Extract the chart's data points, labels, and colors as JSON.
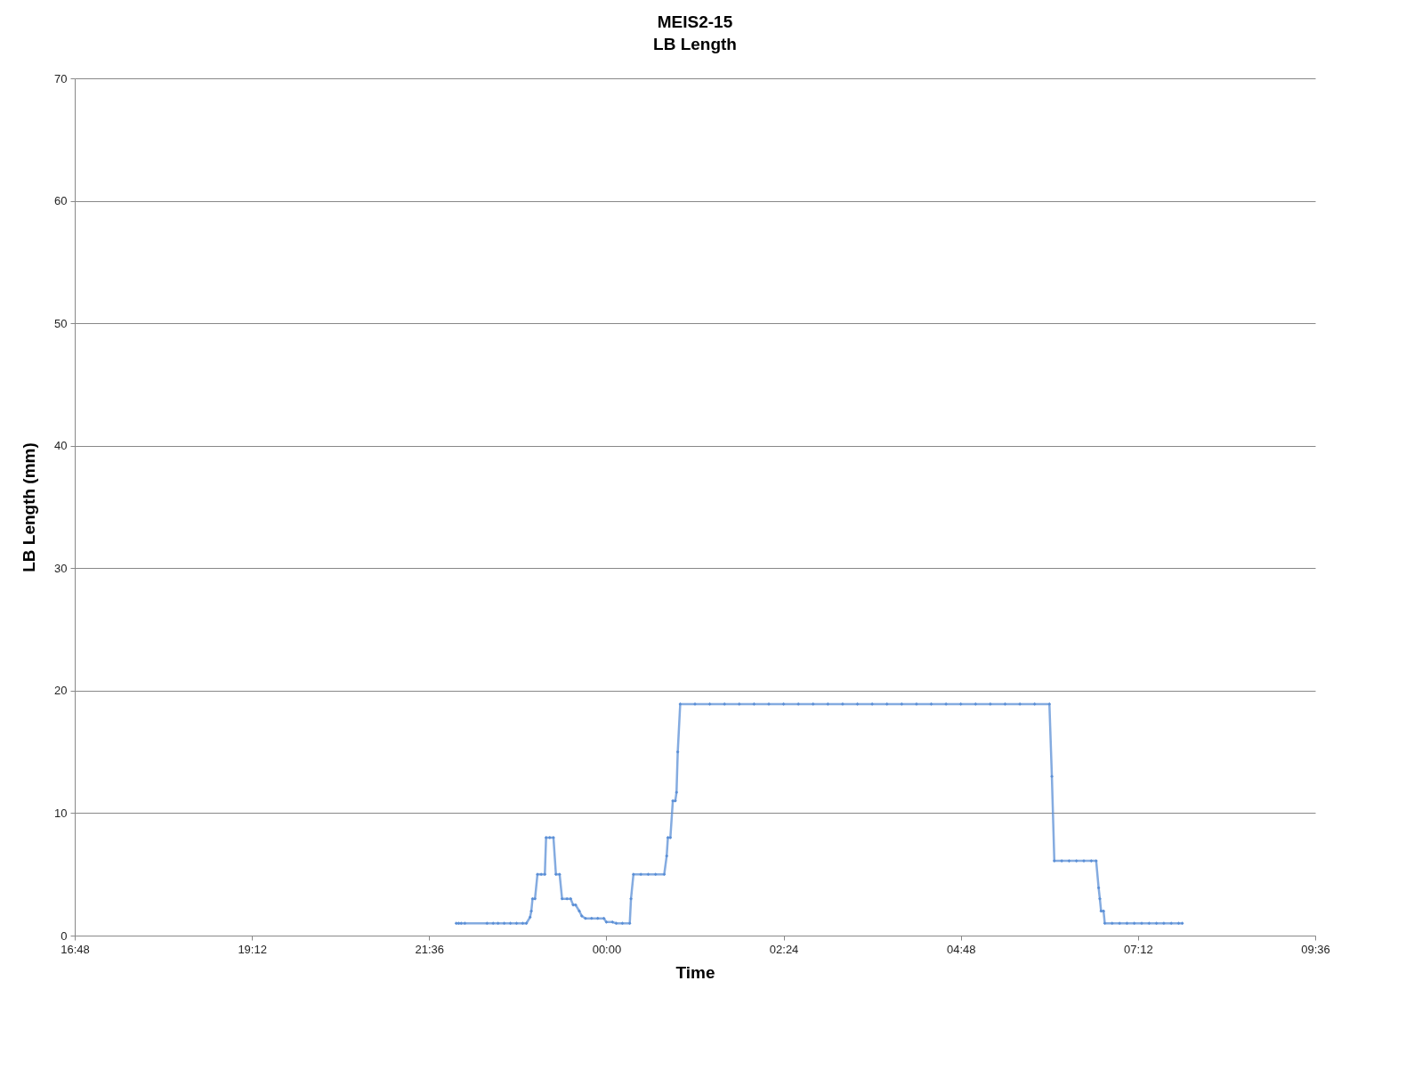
{
  "chart_data": {
    "type": "line",
    "title": "MEIS2-15",
    "subtitle": "LB Length",
    "xlabel": "Time",
    "ylabel": "LB Length (mm)",
    "xlim": [
      "2000-01-01T16:48",
      "2000-01-02T09:36"
    ],
    "xticks": [
      {
        "value": "2000-01-01T16:48",
        "label": "16:48"
      },
      {
        "value": "2000-01-01T19:12",
        "label": "19:12"
      },
      {
        "value": "2000-01-01T21:36",
        "label": "21:36"
      },
      {
        "value": "2000-01-02T00:00",
        "label": "00:00"
      },
      {
        "value": "2000-01-02T02:24",
        "label": "02:24"
      },
      {
        "value": "2000-01-02T04:48",
        "label": "04:48"
      },
      {
        "value": "2000-01-02T07:12",
        "label": "07:12"
      },
      {
        "value": "2000-01-02T09:36",
        "label": "09:36"
      }
    ],
    "ylim": [
      0,
      70
    ],
    "yticks": [
      0,
      10,
      20,
      30,
      40,
      50,
      60,
      70
    ],
    "grid": "y",
    "marker": "diamond",
    "line_style": "solid",
    "series": [
      {
        "color": "#5b8fd6",
        "x": [
          "2000-01-01T21:58",
          "2000-01-01T22:00",
          "2000-01-01T22:02",
          "2000-01-01T22:05",
          "2000-01-01T22:23",
          "2000-01-01T22:28",
          "2000-01-01T22:32",
          "2000-01-01T22:37",
          "2000-01-01T22:42",
          "2000-01-01T22:47",
          "2000-01-01T22:52",
          "2000-01-01T22:55",
          "2000-01-01T22:58",
          "2000-01-01T22:59",
          "2000-01-01T23:00",
          "2000-01-01T23:02",
          "2000-01-01T23:04",
          "2000-01-01T23:07",
          "2000-01-01T23:10",
          "2000-01-01T23:11",
          "2000-01-01T23:14",
          "2000-01-01T23:17",
          "2000-01-01T23:19",
          "2000-01-01T23:22",
          "2000-01-01T23:24",
          "2000-01-01T23:28",
          "2000-01-01T23:31",
          "2000-01-01T23:33",
          "2000-01-01T23:35",
          "2000-01-01T23:38",
          "2000-01-01T23:40",
          "2000-01-01T23:43",
          "2000-01-01T23:48",
          "2000-01-01T23:53",
          "2000-01-01T23:58",
          "2000-01-02T00:00",
          "2000-01-02T00:05",
          "2000-01-02T00:08",
          "2000-01-02T00:13",
          "2000-01-02T00:19",
          "2000-01-02T00:20",
          "2000-01-02T00:22",
          "2000-01-02T00:28",
          "2000-01-02T00:34",
          "2000-01-02T00:40",
          "2000-01-02T00:47",
          "2000-01-02T00:49",
          "2000-01-02T00:50",
          "2000-01-02T00:52",
          "2000-01-02T00:54",
          "2000-01-02T00:56",
          "2000-01-02T00:57",
          "2000-01-02T00:58",
          "2000-01-02T01:00",
          "2000-01-02T01:12",
          "2000-01-02T01:24",
          "2000-01-02T01:36",
          "2000-01-02T01:48",
          "2000-01-02T02:00",
          "2000-01-02T02:12",
          "2000-01-02T02:24",
          "2000-01-02T02:36",
          "2000-01-02T02:48",
          "2000-01-02T03:00",
          "2000-01-02T03:12",
          "2000-01-02T03:24",
          "2000-01-02T03:36",
          "2000-01-02T03:48",
          "2000-01-02T04:00",
          "2000-01-02T04:12",
          "2000-01-02T04:24",
          "2000-01-02T04:36",
          "2000-01-02T04:48",
          "2000-01-02T05:00",
          "2000-01-02T05:12",
          "2000-01-02T05:24",
          "2000-01-02T05:36",
          "2000-01-02T05:48",
          "2000-01-02T06:00",
          "2000-01-02T06:02",
          "2000-01-02T06:04",
          "2000-01-02T06:10",
          "2000-01-02T06:16",
          "2000-01-02T06:22",
          "2000-01-02T06:28",
          "2000-01-02T06:34",
          "2000-01-02T06:38",
          "2000-01-02T06:40",
          "2000-01-02T06:41",
          "2000-01-02T06:42",
          "2000-01-02T06:44",
          "2000-01-02T06:45",
          "2000-01-02T06:51",
          "2000-01-02T06:57",
          "2000-01-02T07:03",
          "2000-01-02T07:09",
          "2000-01-02T07:15",
          "2000-01-02T07:21",
          "2000-01-02T07:27",
          "2000-01-02T07:33",
          "2000-01-02T07:39",
          "2000-01-02T07:45",
          "2000-01-02T07:48"
        ],
        "values": [
          1,
          1,
          1,
          1,
          1,
          1,
          1,
          1,
          1,
          1,
          1,
          1,
          1.5,
          2,
          3,
          3,
          5,
          5,
          5,
          8,
          8,
          8,
          5,
          5,
          3,
          3,
          3,
          2.5,
          2.5,
          2,
          1.6,
          1.4,
          1.4,
          1.4,
          1.4,
          1.1,
          1.1,
          1,
          1,
          1,
          3,
          5,
          5,
          5,
          5,
          5,
          6.5,
          8,
          8,
          11,
          11,
          11.7,
          15,
          18.9,
          18.9,
          18.9,
          18.9,
          18.9,
          18.9,
          18.9,
          18.9,
          18.9,
          18.9,
          18.9,
          18.9,
          18.9,
          18.9,
          18.9,
          18.9,
          18.9,
          18.9,
          18.9,
          18.9,
          18.9,
          18.9,
          18.9,
          18.9,
          18.9,
          18.9,
          13,
          6.1,
          6.1,
          6.1,
          6.1,
          6.1,
          6.1,
          6.1,
          3.9,
          3,
          2,
          2,
          1,
          1,
          1,
          1,
          1,
          1,
          1,
          1,
          1,
          1,
          1,
          1
        ]
      }
    ]
  }
}
